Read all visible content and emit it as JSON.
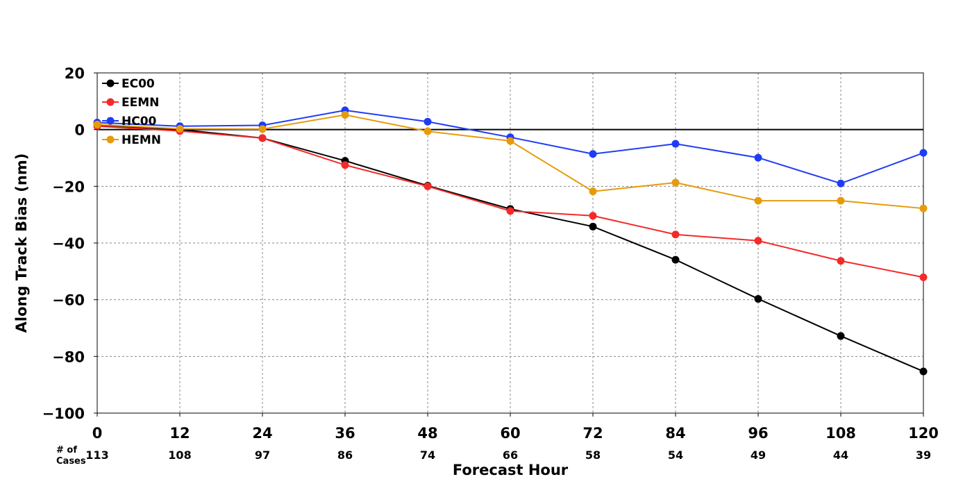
{
  "chart_data": {
    "type": "line",
    "xlabel": "Forecast Hour",
    "ylabel": "Along Track Bias (nm)",
    "x": [
      0,
      12,
      24,
      36,
      48,
      60,
      72,
      84,
      96,
      108,
      120
    ],
    "xlim": [
      0,
      120
    ],
    "ylim": [
      -100,
      20
    ],
    "yticks": [
      20,
      0,
      -20,
      -40,
      -60,
      -80,
      -100
    ],
    "ytick_labels": [
      "20",
      "0",
      "−20",
      "−40",
      "−60",
      "−80",
      "−100"
    ],
    "xtick_labels": [
      "0",
      "12",
      "24",
      "36",
      "48",
      "60",
      "72",
      "84",
      "96",
      "108",
      "120"
    ],
    "grid": true,
    "zero_line": true,
    "legend_position": "top-left",
    "series": [
      {
        "name": "EC00",
        "color": "#000000",
        "values": [
          1.5,
          0,
          -3,
          -11,
          -19.8,
          -28,
          -34.2,
          -45.9,
          -59.7,
          -72.8,
          -85.3
        ]
      },
      {
        "name": "EEMN",
        "color": "#f42a2a",
        "values": [
          1.2,
          -0.5,
          -3,
          -12.5,
          -20,
          -28.7,
          -30.4,
          -37,
          -39.2,
          -46.3,
          -52.1
        ]
      },
      {
        "name": "HC00",
        "color": "#1f3cf5",
        "values": [
          2.5,
          1.2,
          1.5,
          6.8,
          2.8,
          -2.7,
          -8.6,
          -5,
          -9.9,
          -19,
          -8.2
        ]
      },
      {
        "name": "HEMN",
        "color": "#e69b0c",
        "values": [
          1.8,
          0.3,
          0.2,
          5.2,
          -0.6,
          -4,
          -21.8,
          -18.7,
          -25.1,
          -25.1,
          -27.8
        ]
      }
    ],
    "cases_label": [
      "# of",
      "Cases"
    ],
    "cases": [
      "113",
      "108",
      "97",
      "86",
      "74",
      "66",
      "58",
      "54",
      "49",
      "44",
      "39"
    ]
  }
}
